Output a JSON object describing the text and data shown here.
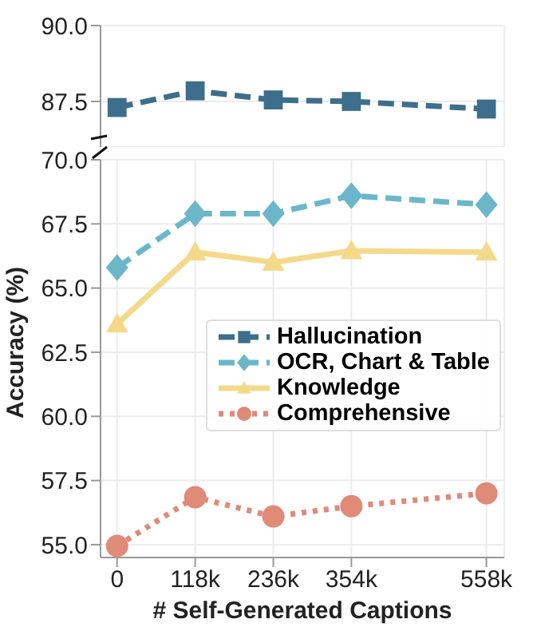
{
  "chart_data": [
    {
      "type": "line",
      "x": [
        0,
        118000,
        236000,
        354000,
        558000
      ],
      "xlim": [
        -25000,
        585000
      ],
      "ylim": [
        86,
        90
      ],
      "yticks": [
        87.5,
        {
          "value": 90,
          "label": "90.0"
        }
      ],
      "tick_labels": "y",
      "grid": true,
      "legend": "right",
      "series": [
        {
          "name": "Hallucination",
          "color": "#3d6e8c",
          "marker": "square",
          "line_style": "dashed",
          "values": [
            87.3,
            87.85,
            87.55,
            87.5,
            87.25
          ]
        }
      ]
    },
    {
      "type": "line",
      "x": [
        0,
        118000,
        236000,
        354000,
        558000
      ],
      "xlim": [
        -25000,
        585000
      ],
      "xticks": [
        {
          "value": 0,
          "label": "0"
        },
        {
          "value": 118000,
          "label": "118k"
        },
        {
          "value": 236000,
          "label": "236k"
        },
        {
          "value": 354000,
          "label": "354k"
        },
        {
          "value": 558000,
          "label": "558k"
        }
      ],
      "ylim": [
        54.5,
        70
      ],
      "yticks": [
        {
          "value": 55,
          "label": "55.0"
        },
        57.5,
        {
          "value": 60,
          "label": "60.0"
        },
        62.5,
        {
          "value": 65,
          "label": "65.0"
        },
        67.5,
        {
          "value": 70,
          "label": "70.0"
        }
      ],
      "xlabel": "# Self-Generated Captions",
      "ylabel": "Accuracy (%)",
      "grid": true,
      "legend": "right",
      "series": [
        {
          "name": "OCR, Chart & Table",
          "color": "#6bb7c9",
          "marker": "diamond",
          "line_style": "dashed",
          "values": [
            65.8,
            67.9,
            67.9,
            68.6,
            68.25
          ]
        },
        {
          "name": "Knowledge",
          "color": "#f5d98b",
          "marker": "triangle",
          "line_style": "solid",
          "values": [
            63.6,
            66.4,
            66.0,
            66.45,
            66.4
          ]
        },
        {
          "name": "Comprehensive",
          "color": "#e08a78",
          "marker": "circle",
          "line_style": "dotted",
          "values": [
            54.95,
            56.85,
            56.1,
            56.5,
            57.0
          ]
        }
      ]
    }
  ]
}
